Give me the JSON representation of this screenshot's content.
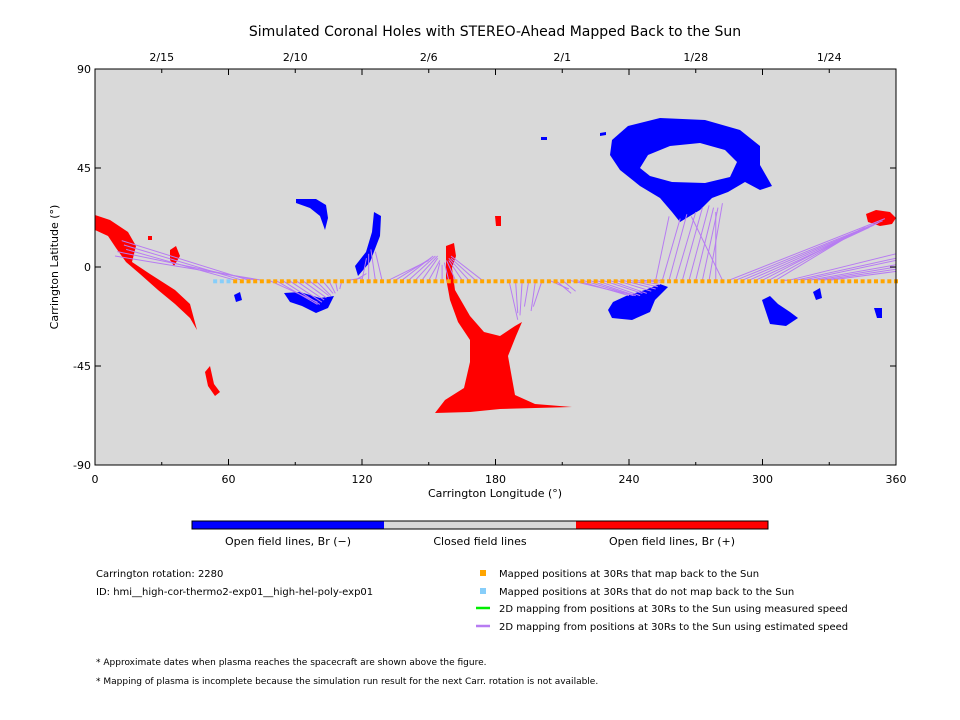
{
  "chart_data": {
    "type": "scatter",
    "title": "Simulated Coronal Holes with STEREO-Ahead Mapped Back to the Sun",
    "xlabel": "Carrington Longitude (°)",
    "ylabel": "Carrington Latitude (°)",
    "xlim": [
      0,
      360
    ],
    "ylim": [
      -90,
      90
    ],
    "xticks": [
      "0",
      "60",
      "120",
      "180",
      "240",
      "300",
      "360"
    ],
    "yticks": [
      "90",
      "45",
      "0",
      "-45",
      "-90"
    ],
    "top_axis_dates": [
      {
        "label": "2/15",
        "lon": 30
      },
      {
        "label": "2/10",
        "lon": 90
      },
      {
        "label": "2/6",
        "lon": 150
      },
      {
        "label": "2/1",
        "lon": 210
      },
      {
        "label": "1/28",
        "lon": 270
      },
      {
        "label": "1/24",
        "lon": 330
      }
    ],
    "colors": {
      "background": "#d9d9d9",
      "open_negative": "#0000ff",
      "open_positive": "#ff0000",
      "mapped": "#ffa500",
      "not_mapped": "#87cefa",
      "measured_speed_line": "#00ee00",
      "estimated_speed_line": "#b77cf2"
    },
    "mapped_points": {
      "lat": -6.5,
      "lon_start": 63,
      "lon_end": 360,
      "step": 3
    },
    "unmapped_points": {
      "lat": -6.5,
      "lon_start": 54,
      "lon_end": 61,
      "step": 3
    },
    "mapping_lines": [
      [
        63,
        -6,
        14,
        8
      ],
      [
        66,
        -6,
        13,
        10
      ],
      [
        69,
        -6,
        12,
        12
      ],
      [
        72,
        -6,
        10,
        7
      ],
      [
        75,
        -6,
        9,
        5
      ],
      [
        78,
        -6,
        100,
        -16
      ],
      [
        81,
        -6,
        100,
        -17
      ],
      [
        84,
        -6,
        101,
        -17
      ],
      [
        87,
        -6,
        102,
        -16
      ],
      [
        90,
        -6,
        103,
        -15
      ],
      [
        93,
        -6,
        104,
        -14
      ],
      [
        96,
        -6,
        105,
        -13
      ],
      [
        99,
        -6,
        106,
        -13
      ],
      [
        102,
        -6,
        107,
        -12
      ],
      [
        105,
        -6,
        108,
        -12
      ],
      [
        108,
        -6,
        109,
        -11
      ],
      [
        111,
        -6,
        110,
        -10
      ],
      [
        114,
        -6,
        120,
        -5
      ],
      [
        117,
        -6,
        122,
        -3
      ],
      [
        120,
        -6,
        122,
        4
      ],
      [
        123,
        -6,
        123,
        6
      ],
      [
        126,
        -6,
        124,
        8
      ],
      [
        129,
        -6,
        126,
        7
      ],
      [
        132,
        -6,
        150,
        3
      ],
      [
        135,
        -6,
        151,
        4
      ],
      [
        138,
        -6,
        152,
        5
      ],
      [
        141,
        -6,
        153,
        5
      ],
      [
        144,
        -6,
        154,
        5
      ],
      [
        147,
        -6,
        154,
        4
      ],
      [
        150,
        -6,
        155,
        3
      ],
      [
        153,
        -6,
        155,
        2
      ],
      [
        156,
        -6,
        156,
        1
      ],
      [
        159,
        -6,
        157,
        2
      ],
      [
        162,
        -6,
        158,
        3
      ],
      [
        165,
        -6,
        159,
        3
      ],
      [
        168,
        -6,
        159,
        4
      ],
      [
        171,
        -6,
        160,
        4
      ],
      [
        174,
        -6,
        160,
        5
      ],
      [
        186,
        -6,
        190,
        -24
      ],
      [
        189,
        -6,
        190,
        -21
      ],
      [
        192,
        -6,
        191,
        -22
      ],
      [
        195,
        -6,
        193,
        -18
      ],
      [
        198,
        -6,
        196,
        -20
      ],
      [
        201,
        -6,
        197,
        -18
      ],
      [
        204,
        -6,
        213,
        -10
      ],
      [
        207,
        -6,
        214,
        -12
      ],
      [
        210,
        -6,
        216,
        -11
      ],
      [
        213,
        -6,
        238,
        -12
      ],
      [
        216,
        -6,
        240,
        -13
      ],
      [
        219,
        -6,
        242,
        -13
      ],
      [
        222,
        -6,
        243,
        -13
      ],
      [
        225,
        -6,
        245,
        -13
      ],
      [
        228,
        -6,
        246,
        -12
      ],
      [
        231,
        -6,
        248,
        -12
      ],
      [
        234,
        -6,
        250,
        -11
      ],
      [
        237,
        -6,
        252,
        -10
      ],
      [
        240,
        -6,
        253,
        -9
      ],
      [
        243,
        -6,
        254,
        -8
      ],
      [
        246,
        -6,
        255,
        -7
      ],
      [
        249,
        -6,
        256,
        -6
      ],
      [
        252,
        -6,
        258,
        23
      ],
      [
        255,
        -6,
        263,
        22
      ],
      [
        258,
        -6,
        266,
        24
      ],
      [
        261,
        -6,
        270,
        25
      ],
      [
        264,
        -6,
        273,
        27
      ],
      [
        267,
        -6,
        276,
        28
      ],
      [
        270,
        -6,
        278,
        27
      ],
      [
        273,
        -6,
        280,
        27
      ],
      [
        276,
        -6,
        282,
        29
      ],
      [
        279,
        -6,
        279,
        25
      ],
      [
        282,
        -6,
        268,
        23
      ],
      [
        285,
        -6,
        355,
        22
      ],
      [
        288,
        -6,
        354,
        21
      ],
      [
        291,
        -6,
        352,
        20
      ],
      [
        294,
        -6,
        350,
        19
      ],
      [
        297,
        -6,
        348,
        18
      ],
      [
        300,
        -6,
        346,
        18
      ],
      [
        303,
        -6,
        344,
        17
      ],
      [
        306,
        -6,
        342,
        16
      ],
      [
        309,
        -6,
        312,
        -6
      ],
      [
        312,
        -6,
        360,
        6
      ],
      [
        315,
        -6,
        360,
        4
      ],
      [
        318,
        -6,
        360,
        3
      ],
      [
        321,
        -6,
        360,
        1
      ],
      [
        324,
        -6,
        360,
        0
      ],
      [
        327,
        -6,
        360,
        -1
      ],
      [
        330,
        -6,
        360,
        -2
      ]
    ],
    "legend": {
      "colorbar": [
        "Open field lines, Br (−)",
        "Closed field lines",
        "Open field lines, Br (+)"
      ],
      "points": [
        "Mapped positions at 30Rs that map back to the Sun",
        "Mapped positions at 30Rs that do not map back to the Sun",
        "2D mapping from positions at 30Rs to the Sun using measured speed",
        "2D mapping from positions at 30Rs to the Sun using estimated speed"
      ]
    }
  },
  "info": {
    "rotation": "Carrington rotation: 2280",
    "id": "ID: hmi__high-cor-thermo2-exp01__high-hel-poly-exp01"
  },
  "notes": [
    "* Approximate dates when plasma reaches the spacecraft are shown above the figure.",
    "* Mapping of plasma is incomplete because the simulation run result for the next Carr. rotation is not available."
  ]
}
